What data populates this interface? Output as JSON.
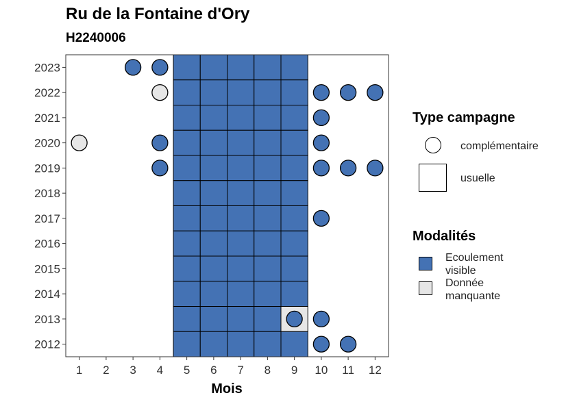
{
  "chart_data": {
    "type": "heatmap",
    "title": "Ru de la Fontaine d'Ory",
    "subtitle": "H2240006",
    "xlabel": "Mois",
    "ylabel": "",
    "x_ticks": [
      "1",
      "2",
      "3",
      "4",
      "5",
      "6",
      "7",
      "8",
      "9",
      "10",
      "11",
      "12"
    ],
    "y_ticks": [
      "2012",
      "2013",
      "2014",
      "2015",
      "2016",
      "2017",
      "2018",
      "2019",
      "2020",
      "2021",
      "2022",
      "2023"
    ],
    "colors": {
      "Ecoulement visible": "#4472b4",
      "Donnée manquante": "#e6e6e6"
    },
    "legend_type": {
      "title": "Type campagne",
      "items": [
        {
          "label": "complémentaire",
          "shape": "circle"
        },
        {
          "label": "usuelle",
          "shape": "square"
        }
      ]
    },
    "legend_modalites": {
      "title": "Modalités",
      "items": [
        {
          "label_line1": "Ecoulement",
          "label_line2": "visible",
          "key": "Ecoulement visible"
        },
        {
          "label_line1": "Donnée",
          "label_line2": "manquante",
          "key": "Donnée manquante"
        }
      ]
    },
    "observations": [
      {
        "year": 2023,
        "month": 3,
        "type": "complémentaire",
        "modalite": "Ecoulement visible"
      },
      {
        "year": 2023,
        "month": 4,
        "type": "complémentaire",
        "modalite": "Ecoulement visible"
      },
      {
        "year": 2023,
        "month": 5,
        "type": "usuelle",
        "modalite": "Ecoulement visible"
      },
      {
        "year": 2023,
        "month": 6,
        "type": "usuelle",
        "modalite": "Ecoulement visible"
      },
      {
        "year": 2023,
        "month": 7,
        "type": "usuelle",
        "modalite": "Ecoulement visible"
      },
      {
        "year": 2023,
        "month": 8,
        "type": "usuelle",
        "modalite": "Ecoulement visible"
      },
      {
        "year": 2023,
        "month": 9,
        "type": "usuelle",
        "modalite": "Ecoulement visible"
      },
      {
        "year": 2022,
        "month": 4,
        "type": "complémentaire",
        "modalite": "Donnée manquante"
      },
      {
        "year": 2022,
        "month": 5,
        "type": "usuelle",
        "modalite": "Ecoulement visible"
      },
      {
        "year": 2022,
        "month": 6,
        "type": "usuelle",
        "modalite": "Ecoulement visible"
      },
      {
        "year": 2022,
        "month": 7,
        "type": "usuelle",
        "modalite": "Ecoulement visible"
      },
      {
        "year": 2022,
        "month": 8,
        "type": "usuelle",
        "modalite": "Ecoulement visible"
      },
      {
        "year": 2022,
        "month": 9,
        "type": "usuelle",
        "modalite": "Ecoulement visible"
      },
      {
        "year": 2022,
        "month": 10,
        "type": "complémentaire",
        "modalite": "Ecoulement visible"
      },
      {
        "year": 2022,
        "month": 11,
        "type": "complémentaire",
        "modalite": "Ecoulement visible"
      },
      {
        "year": 2022,
        "month": 12,
        "type": "complémentaire",
        "modalite": "Ecoulement visible"
      },
      {
        "year": 2021,
        "month": 5,
        "type": "usuelle",
        "modalite": "Ecoulement visible"
      },
      {
        "year": 2021,
        "month": 6,
        "type": "usuelle",
        "modalite": "Ecoulement visible"
      },
      {
        "year": 2021,
        "month": 7,
        "type": "usuelle",
        "modalite": "Ecoulement visible"
      },
      {
        "year": 2021,
        "month": 8,
        "type": "usuelle",
        "modalite": "Ecoulement visible"
      },
      {
        "year": 2021,
        "month": 9,
        "type": "usuelle",
        "modalite": "Ecoulement visible"
      },
      {
        "year": 2021,
        "month": 10,
        "type": "complémentaire",
        "modalite": "Ecoulement visible"
      },
      {
        "year": 2020,
        "month": 1,
        "type": "complémentaire",
        "modalite": "Donnée manquante"
      },
      {
        "year": 2020,
        "month": 4,
        "type": "complémentaire",
        "modalite": "Ecoulement visible"
      },
      {
        "year": 2020,
        "month": 5,
        "type": "usuelle",
        "modalite": "Ecoulement visible"
      },
      {
        "year": 2020,
        "month": 6,
        "type": "usuelle",
        "modalite": "Ecoulement visible"
      },
      {
        "year": 2020,
        "month": 7,
        "type": "usuelle",
        "modalite": "Ecoulement visible"
      },
      {
        "year": 2020,
        "month": 8,
        "type": "usuelle",
        "modalite": "Ecoulement visible"
      },
      {
        "year": 2020,
        "month": 9,
        "type": "usuelle",
        "modalite": "Ecoulement visible"
      },
      {
        "year": 2020,
        "month": 10,
        "type": "complémentaire",
        "modalite": "Ecoulement visible"
      },
      {
        "year": 2019,
        "month": 4,
        "type": "complémentaire",
        "modalite": "Ecoulement visible"
      },
      {
        "year": 2019,
        "month": 5,
        "type": "usuelle",
        "modalite": "Ecoulement visible"
      },
      {
        "year": 2019,
        "month": 6,
        "type": "usuelle",
        "modalite": "Ecoulement visible"
      },
      {
        "year": 2019,
        "month": 7,
        "type": "usuelle",
        "modalite": "Ecoulement visible"
      },
      {
        "year": 2019,
        "month": 8,
        "type": "usuelle",
        "modalite": "Ecoulement visible"
      },
      {
        "year": 2019,
        "month": 9,
        "type": "usuelle",
        "modalite": "Ecoulement visible"
      },
      {
        "year": 2019,
        "month": 10,
        "type": "complémentaire",
        "modalite": "Ecoulement visible"
      },
      {
        "year": 2019,
        "month": 11,
        "type": "complémentaire",
        "modalite": "Ecoulement visible"
      },
      {
        "year": 2019,
        "month": 12,
        "type": "complémentaire",
        "modalite": "Ecoulement visible"
      },
      {
        "year": 2018,
        "month": 5,
        "type": "usuelle",
        "modalite": "Ecoulement visible"
      },
      {
        "year": 2018,
        "month": 6,
        "type": "usuelle",
        "modalite": "Ecoulement visible"
      },
      {
        "year": 2018,
        "month": 7,
        "type": "usuelle",
        "modalite": "Ecoulement visible"
      },
      {
        "year": 2018,
        "month": 8,
        "type": "usuelle",
        "modalite": "Ecoulement visible"
      },
      {
        "year": 2018,
        "month": 9,
        "type": "usuelle",
        "modalite": "Ecoulement visible"
      },
      {
        "year": 2017,
        "month": 5,
        "type": "usuelle",
        "modalite": "Ecoulement visible"
      },
      {
        "year": 2017,
        "month": 6,
        "type": "usuelle",
        "modalite": "Ecoulement visible"
      },
      {
        "year": 2017,
        "month": 7,
        "type": "usuelle",
        "modalite": "Ecoulement visible"
      },
      {
        "year": 2017,
        "month": 8,
        "type": "usuelle",
        "modalite": "Ecoulement visible"
      },
      {
        "year": 2017,
        "month": 9,
        "type": "usuelle",
        "modalite": "Ecoulement visible"
      },
      {
        "year": 2017,
        "month": 10,
        "type": "complémentaire",
        "modalite": "Ecoulement visible"
      },
      {
        "year": 2016,
        "month": 5,
        "type": "usuelle",
        "modalite": "Ecoulement visible"
      },
      {
        "year": 2016,
        "month": 6,
        "type": "usuelle",
        "modalite": "Ecoulement visible"
      },
      {
        "year": 2016,
        "month": 7,
        "type": "usuelle",
        "modalite": "Ecoulement visible"
      },
      {
        "year": 2016,
        "month": 8,
        "type": "usuelle",
        "modalite": "Ecoulement visible"
      },
      {
        "year": 2016,
        "month": 9,
        "type": "usuelle",
        "modalite": "Ecoulement visible"
      },
      {
        "year": 2015,
        "month": 5,
        "type": "usuelle",
        "modalite": "Ecoulement visible"
      },
      {
        "year": 2015,
        "month": 6,
        "type": "usuelle",
        "modalite": "Ecoulement visible"
      },
      {
        "year": 2015,
        "month": 7,
        "type": "usuelle",
        "modalite": "Ecoulement visible"
      },
      {
        "year": 2015,
        "month": 8,
        "type": "usuelle",
        "modalite": "Ecoulement visible"
      },
      {
        "year": 2015,
        "month": 9,
        "type": "usuelle",
        "modalite": "Ecoulement visible"
      },
      {
        "year": 2014,
        "month": 5,
        "type": "usuelle",
        "modalite": "Ecoulement visible"
      },
      {
        "year": 2014,
        "month": 6,
        "type": "usuelle",
        "modalite": "Ecoulement visible"
      },
      {
        "year": 2014,
        "month": 7,
        "type": "usuelle",
        "modalite": "Ecoulement visible"
      },
      {
        "year": 2014,
        "month": 8,
        "type": "usuelle",
        "modalite": "Ecoulement visible"
      },
      {
        "year": 2014,
        "month": 9,
        "type": "usuelle",
        "modalite": "Ecoulement visible"
      },
      {
        "year": 2013,
        "month": 5,
        "type": "usuelle",
        "modalite": "Ecoulement visible"
      },
      {
        "year": 2013,
        "month": 6,
        "type": "usuelle",
        "modalite": "Ecoulement visible"
      },
      {
        "year": 2013,
        "month": 7,
        "type": "usuelle",
        "modalite": "Ecoulement visible"
      },
      {
        "year": 2013,
        "month": 8,
        "type": "usuelle",
        "modalite": "Ecoulement visible"
      },
      {
        "year": 2013,
        "month": 9,
        "type": "usuelle",
        "modalite": "Donnée manquante"
      },
      {
        "year": 2013,
        "month": 9,
        "type": "complémentaire",
        "modalite": "Ecoulement visible"
      },
      {
        "year": 2013,
        "month": 10,
        "type": "complémentaire",
        "modalite": "Ecoulement visible"
      },
      {
        "year": 2012,
        "month": 5,
        "type": "usuelle",
        "modalite": "Ecoulement visible"
      },
      {
        "year": 2012,
        "month": 6,
        "type": "usuelle",
        "modalite": "Ecoulement visible"
      },
      {
        "year": 2012,
        "month": 7,
        "type": "usuelle",
        "modalite": "Ecoulement visible"
      },
      {
        "year": 2012,
        "month": 8,
        "type": "usuelle",
        "modalite": "Ecoulement visible"
      },
      {
        "year": 2012,
        "month": 9,
        "type": "usuelle",
        "modalite": "Ecoulement visible"
      },
      {
        "year": 2012,
        "month": 10,
        "type": "complémentaire",
        "modalite": "Ecoulement visible"
      },
      {
        "year": 2012,
        "month": 11,
        "type": "complémentaire",
        "modalite": "Ecoulement visible"
      }
    ]
  }
}
